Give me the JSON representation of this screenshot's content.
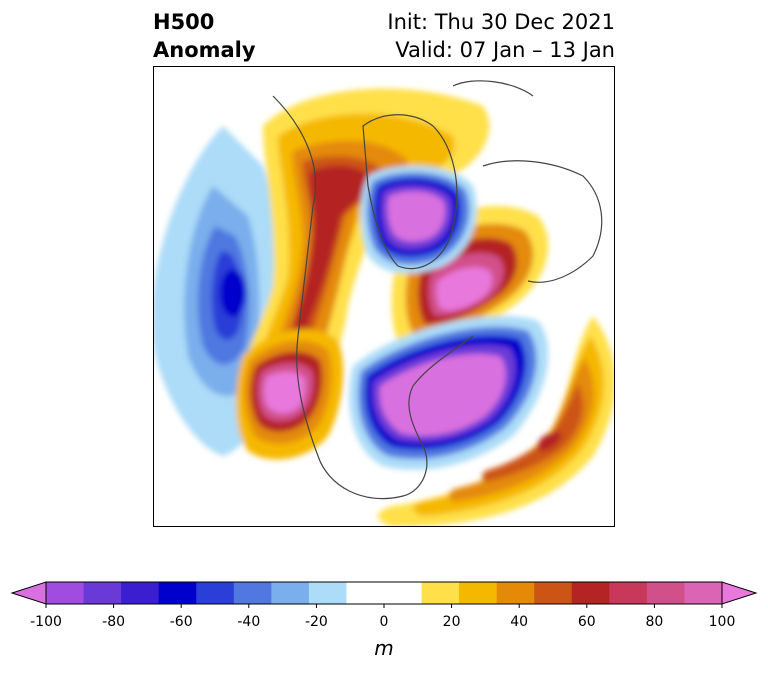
{
  "title": {
    "left_line1": "H500",
    "left_line2": "Anomaly",
    "right_line1": "Init: Thu 30 Dec 2021",
    "right_line2": "Valid: 07 Jan – 13 Jan"
  },
  "colorbar": {
    "unit": "m",
    "ticks": [
      "-100",
      "-80",
      "-60",
      "-40",
      "-20",
      "0",
      "20",
      "40",
      "60",
      "80",
      "100"
    ],
    "colors": [
      "#d970e0",
      "#a04ce0",
      "#6a3ad8",
      "#3a1ed0",
      "#0000cc",
      "#2a3ed8",
      "#5078e0",
      "#7aaeec",
      "#acdcf8",
      "#ffffff",
      "#ffffff",
      "#ffe04a",
      "#f5b800",
      "#e48a08",
      "#cc5414",
      "#b42424",
      "#c8385a",
      "#d2508a",
      "#dc64b4",
      "#e878dc"
    ]
  },
  "map": {
    "features": [
      "north-america",
      "greenland",
      "europe",
      "north-atlantic",
      "north-pacific"
    ]
  }
}
